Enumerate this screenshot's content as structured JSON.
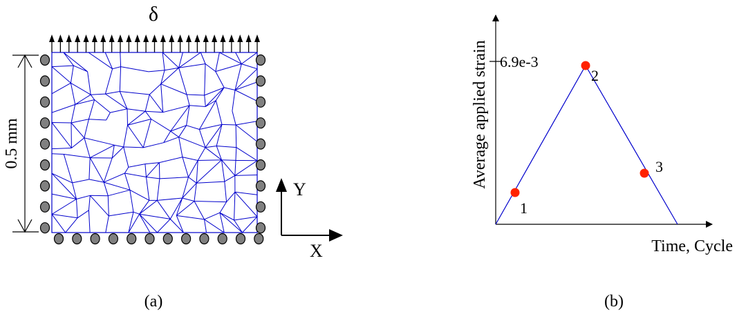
{
  "panel_a": {
    "load_symbol": "δ",
    "dimension_label": "0.5 mm",
    "axis_y": "Y",
    "axis_x": "X",
    "caption": "(a)",
    "grain_color": "#0000cc",
    "support_color": "#808080"
  },
  "panel_b": {
    "ylabel": "Average applied strain",
    "xlabel": "Time, Cycle",
    "peak_value_label": "6.9e-3",
    "caption": "(b)",
    "line_color": "#0000cc",
    "point_color": "#ff2200",
    "points": [
      {
        "label": "1"
      },
      {
        "label": "2"
      },
      {
        "label": "3"
      }
    ]
  }
}
